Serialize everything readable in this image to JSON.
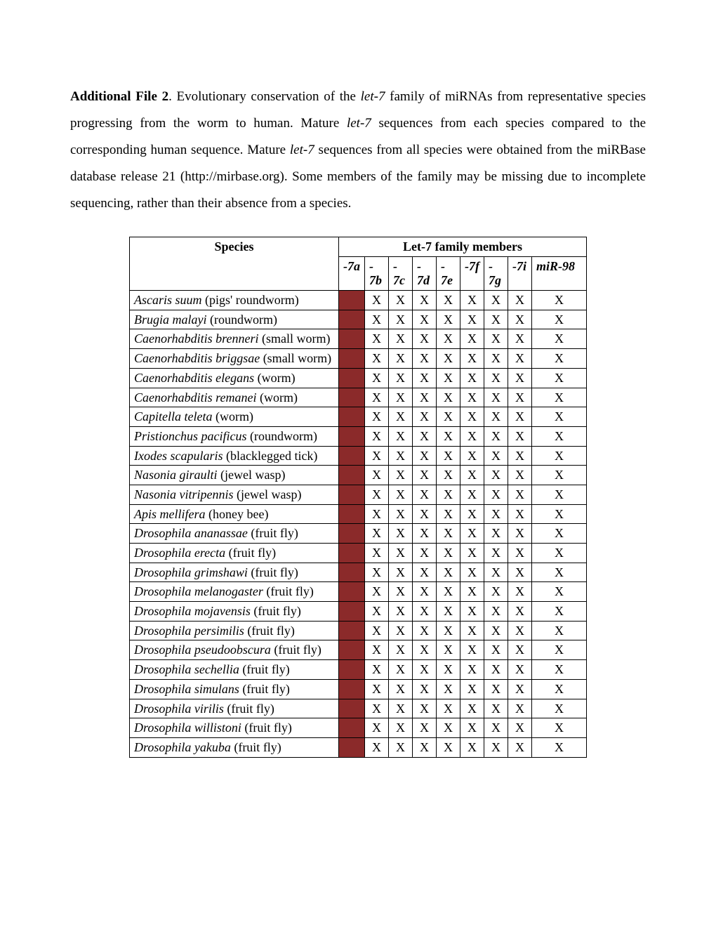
{
  "intro": {
    "title": "Additional File 2",
    "text_before_first_ital": ". Evolutionary conservation of the ",
    "ital1": "let-7",
    "text_after_ital1": " family of miRNAs from representative species progressing from the worm to human. Mature ",
    "ital2": "let-7",
    "text_after_ital2": " sequences from each species compared to the corresponding human sequence. Mature ",
    "ital3": "let-7",
    "text_after_ital3": " sequences from all species were obtained from the miRBase database release 21 (http://mirbase.org). Some members of the family may be missing due to incomplete sequencing, rather than their absence from a species."
  },
  "table": {
    "fill_color": "#8b2a2a",
    "species_header": "Species",
    "family_header_prefix_ital": "Let-7",
    "family_header_suffix": " family members",
    "columns": [
      {
        "top": "-7a",
        "bottom": ""
      },
      {
        "top": "-",
        "bottom": "7b"
      },
      {
        "top": "-",
        "bottom": "7c"
      },
      {
        "top": "-",
        "bottom": "7d"
      },
      {
        "top": "-",
        "bottom": "7e"
      },
      {
        "top": "-7f",
        "bottom": ""
      },
      {
        "top": "-",
        "bottom": "7g"
      },
      {
        "top": "-7i",
        "bottom": ""
      },
      {
        "top": "miR-98",
        "bottom": ""
      }
    ],
    "rows": [
      {
        "sci": "Ascaris suum",
        "common": " (pigs' roundworm)",
        "cells": [
          "fill",
          "X",
          "X",
          "X",
          "X",
          "X",
          "X",
          "X",
          "X"
        ]
      },
      {
        "sci": "Brugia malayi",
        "common": " (roundworm)",
        "cells": [
          "fill",
          "X",
          "X",
          "X",
          "X",
          "X",
          "X",
          "X",
          "X"
        ]
      },
      {
        "sci": "Caenorhabditis brenneri",
        "common": " (small worm)",
        "cells": [
          "fill",
          "X",
          "X",
          "X",
          "X",
          "X",
          "X",
          "X",
          "X"
        ]
      },
      {
        "sci": "Caenorhabditis briggsae",
        "common": " (small worm)",
        "cells": [
          "fill",
          "X",
          "X",
          "X",
          "X",
          "X",
          "X",
          "X",
          "X"
        ]
      },
      {
        "sci": "Caenorhabditis elegans",
        "common": " (worm)",
        "cells": [
          "fill",
          "X",
          "X",
          "X",
          "X",
          "X",
          "X",
          "X",
          "X"
        ]
      },
      {
        "sci": "Caenorhabditis remanei",
        "common": " (worm)",
        "cells": [
          "fill",
          "X",
          "X",
          "X",
          "X",
          "X",
          "X",
          "X",
          "X"
        ]
      },
      {
        "sci": "Capitella teleta",
        "common": " (worm)",
        "cells": [
          "fill",
          "X",
          "X",
          "X",
          "X",
          "X",
          "X",
          "X",
          "X"
        ]
      },
      {
        "sci": "Pristionchus pacificus",
        "common": " (roundworm)",
        "cells": [
          "fill",
          "X",
          "X",
          "X",
          "X",
          "X",
          "X",
          "X",
          "X"
        ]
      },
      {
        "sci": "Ixodes scapularis",
        "common": " (blacklegged tick)",
        "cells": [
          "fill",
          "X",
          "X",
          "X",
          "X",
          "X",
          "X",
          "X",
          "X"
        ]
      },
      {
        "sci": "Nasonia giraulti",
        "common": " (jewel wasp)",
        "cells": [
          "fill",
          "X",
          "X",
          "X",
          "X",
          "X",
          "X",
          "X",
          "X"
        ]
      },
      {
        "sci": "Nasonia vitripennis",
        "common": " (jewel wasp)",
        "cells": [
          "fill",
          "X",
          "X",
          "X",
          "X",
          "X",
          "X",
          "X",
          "X"
        ]
      },
      {
        "sci": "Apis mellifera",
        "common": " (honey bee)",
        "cells": [
          "fill",
          "X",
          "X",
          "X",
          "X",
          "X",
          "X",
          "X",
          "X"
        ]
      },
      {
        "sci": "Drosophila ananassae",
        "common": " (fruit fly)",
        "cells": [
          "fill",
          "X",
          "X",
          "X",
          "X",
          "X",
          "X",
          "X",
          "X"
        ]
      },
      {
        "sci": "Drosophila erecta",
        "common": " (fruit fly)",
        "cells": [
          "fill",
          "X",
          "X",
          "X",
          "X",
          "X",
          "X",
          "X",
          "X"
        ]
      },
      {
        "sci": "Drosophila grimshawi",
        "common": " (fruit fly)",
        "cells": [
          "fill",
          "X",
          "X",
          "X",
          "X",
          "X",
          "X",
          "X",
          "X"
        ]
      },
      {
        "sci": "Drosophila melanogaster",
        "common": " (fruit fly)",
        "cells": [
          "fill",
          "X",
          "X",
          "X",
          "X",
          "X",
          "X",
          "X",
          "X"
        ]
      },
      {
        "sci": "Drosophila mojavensis",
        "common": " (fruit fly)",
        "cells": [
          "fill",
          "X",
          "X",
          "X",
          "X",
          "X",
          "X",
          "X",
          "X"
        ]
      },
      {
        "sci": "Drosophila persimilis",
        "common": " (fruit fly)",
        "cells": [
          "fill",
          "X",
          "X",
          "X",
          "X",
          "X",
          "X",
          "X",
          "X"
        ]
      },
      {
        "sci": "Drosophila pseudoobscura",
        "common": " (fruit fly)",
        "cells": [
          "fill",
          "X",
          "X",
          "X",
          "X",
          "X",
          "X",
          "X",
          "X"
        ]
      },
      {
        "sci": "Drosophila sechellia",
        "common": " (fruit fly)",
        "cells": [
          "fill",
          "X",
          "X",
          "X",
          "X",
          "X",
          "X",
          "X",
          "X"
        ]
      },
      {
        "sci": "Drosophila simulans",
        "common": " (fruit fly)",
        "cells": [
          "fill",
          "X",
          "X",
          "X",
          "X",
          "X",
          "X",
          "X",
          "X"
        ]
      },
      {
        "sci": "Drosophila virilis",
        "common": " (fruit fly)",
        "cells": [
          "fill",
          "X",
          "X",
          "X",
          "X",
          "X",
          "X",
          "X",
          "X"
        ]
      },
      {
        "sci": "Drosophila willistoni",
        "common": " (fruit fly)",
        "cells": [
          "fill",
          "X",
          "X",
          "X",
          "X",
          "X",
          "X",
          "X",
          "X"
        ]
      },
      {
        "sci": "Drosophila yakuba",
        "common": " (fruit fly)",
        "cells": [
          "fill",
          "X",
          "X",
          "X",
          "X",
          "X",
          "X",
          "X",
          "X"
        ]
      }
    ]
  }
}
